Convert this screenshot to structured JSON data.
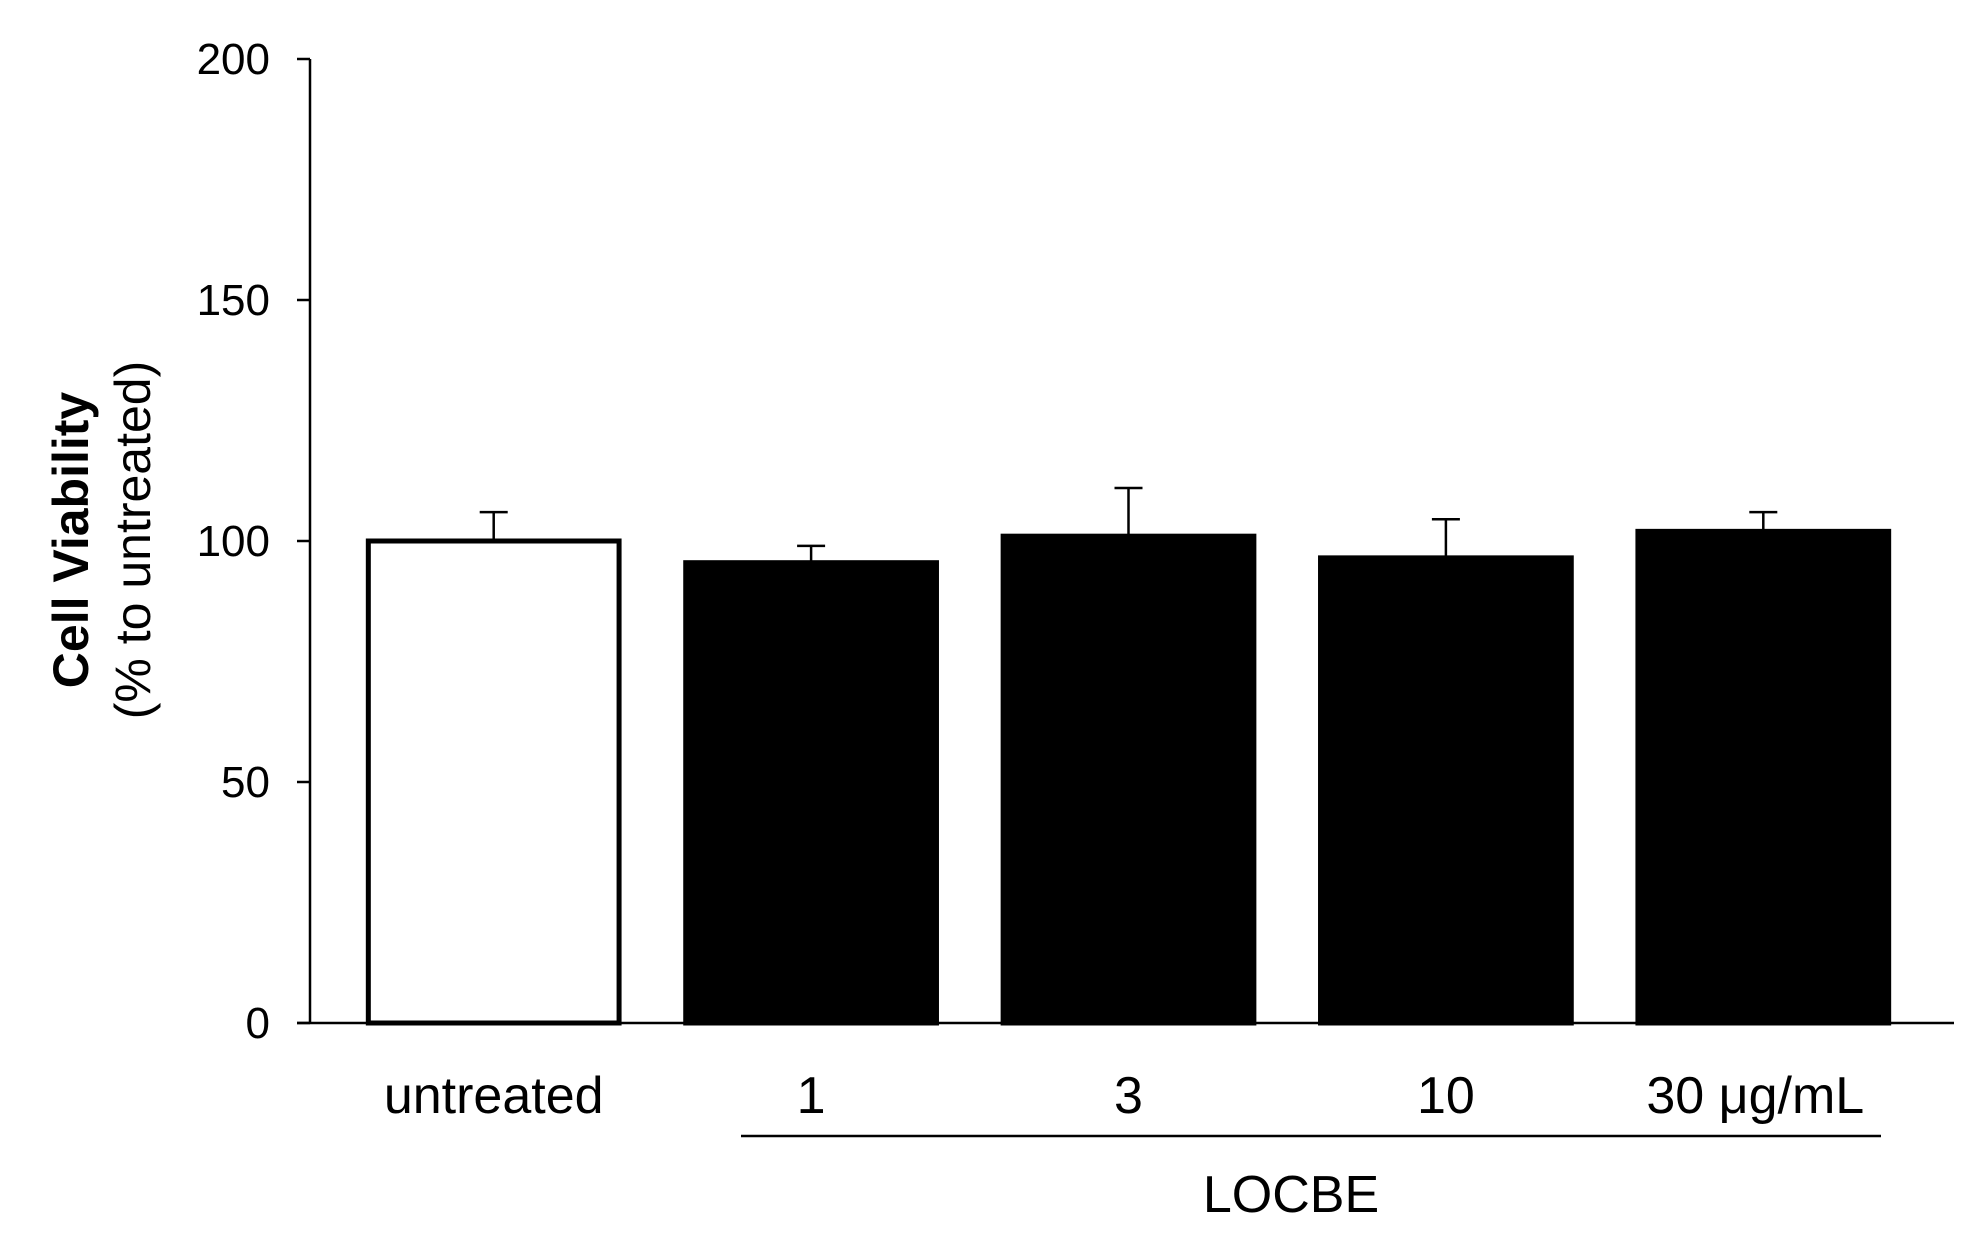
{
  "chart_data": {
    "type": "bar",
    "categories": [
      "untreated",
      "1",
      "3",
      "10",
      "30 μg/mL"
    ],
    "values": [
      100,
      95.5,
      101,
      96.5,
      102
    ],
    "errors": [
      6,
      3.5,
      10,
      8,
      4
    ],
    "bar_colors": [
      "#ffffff",
      "#000000",
      "#000000",
      "#000000",
      "#000000"
    ],
    "ylabel_main": "Cell Viability",
    "ylabel_sub": "(% to untreated)",
    "group_label": "LOCBE",
    "ylim": [
      0,
      200
    ],
    "yticks": [
      0,
      50,
      100,
      150,
      200
    ],
    "grid": false
  }
}
